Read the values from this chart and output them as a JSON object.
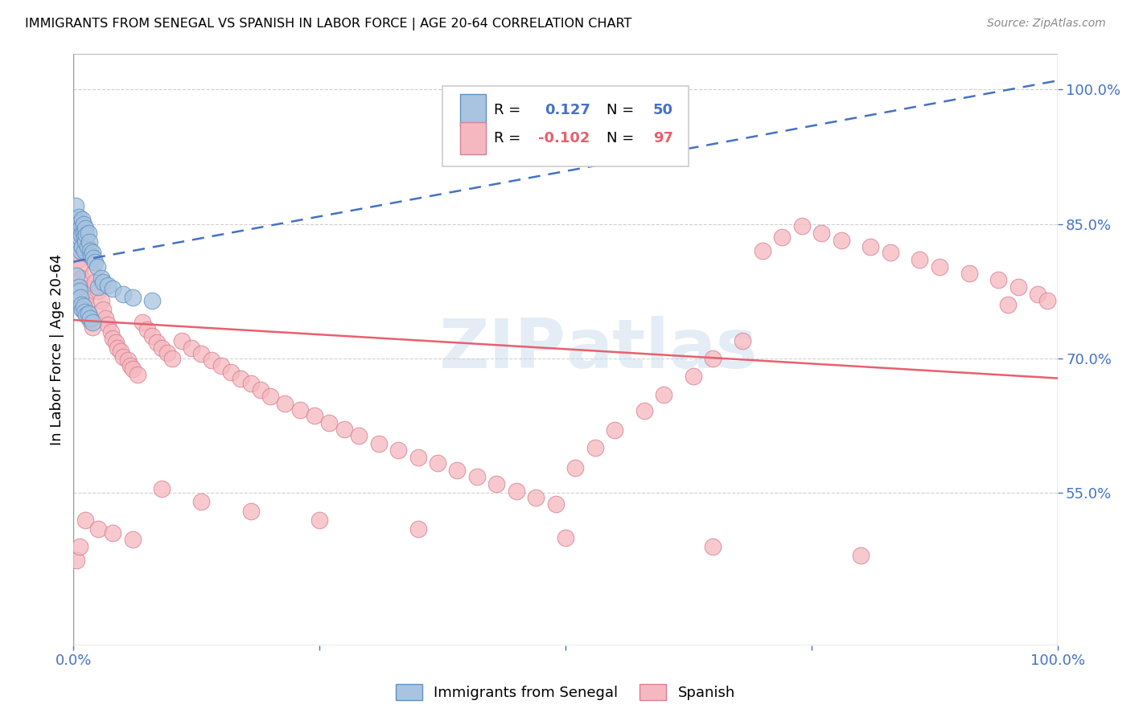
{
  "title": "IMMIGRANTS FROM SENEGAL VS SPANISH IN LABOR FORCE | AGE 20-64 CORRELATION CHART",
  "source": "Source: ZipAtlas.com",
  "ylabel": "In Labor Force | Age 20-64",
  "xlim": [
    0.0,
    1.0
  ],
  "ylim": [
    0.38,
    1.04
  ],
  "ytick_positions": [
    0.55,
    0.7,
    0.85,
    1.0
  ],
  "ytick_labels": [
    "55.0%",
    "70.0%",
    "85.0%",
    "100.0%"
  ],
  "blue_color": "#a8c4e0",
  "pink_color": "#f5b8c0",
  "trendline_blue_color": "#4472c4",
  "trendline_pink_color": "#e8606e",
  "watermark": "ZIPatlas",
  "senegal_x": [
    0.002,
    0.003,
    0.004,
    0.004,
    0.005,
    0.005,
    0.006,
    0.006,
    0.007,
    0.007,
    0.008,
    0.008,
    0.009,
    0.009,
    0.01,
    0.01,
    0.011,
    0.011,
    0.012,
    0.012,
    0.013,
    0.014,
    0.015,
    0.016,
    0.017,
    0.018,
    0.019,
    0.02,
    0.022,
    0.024,
    0.003,
    0.005,
    0.006,
    0.007,
    0.008,
    0.009,
    0.01,
    0.011,
    0.013,
    0.015,
    0.017,
    0.019,
    0.025,
    0.028,
    0.03,
    0.035,
    0.04,
    0.05,
    0.06,
    0.08
  ],
  "senegal_y": [
    0.87,
    0.855,
    0.84,
    0.83,
    0.858,
    0.828,
    0.852,
    0.835,
    0.845,
    0.82,
    0.848,
    0.838,
    0.855,
    0.825,
    0.85,
    0.84,
    0.835,
    0.82,
    0.845,
    0.83,
    0.838,
    0.825,
    0.84,
    0.83,
    0.82,
    0.815,
    0.818,
    0.812,
    0.808,
    0.802,
    0.792,
    0.78,
    0.775,
    0.768,
    0.76,
    0.755,
    0.758,
    0.752,
    0.748,
    0.75,
    0.745,
    0.74,
    0.78,
    0.79,
    0.785,
    0.782,
    0.778,
    0.772,
    0.768,
    0.765
  ],
  "spanish_x": [
    0.003,
    0.005,
    0.006,
    0.008,
    0.01,
    0.012,
    0.013,
    0.015,
    0.017,
    0.019,
    0.02,
    0.022,
    0.025,
    0.028,
    0.03,
    0.032,
    0.035,
    0.038,
    0.04,
    0.043,
    0.045,
    0.048,
    0.05,
    0.055,
    0.058,
    0.06,
    0.065,
    0.07,
    0.075,
    0.08,
    0.085,
    0.09,
    0.095,
    0.1,
    0.11,
    0.12,
    0.13,
    0.14,
    0.15,
    0.16,
    0.17,
    0.18,
    0.19,
    0.2,
    0.215,
    0.23,
    0.245,
    0.26,
    0.275,
    0.29,
    0.31,
    0.33,
    0.35,
    0.37,
    0.39,
    0.41,
    0.43,
    0.45,
    0.47,
    0.49,
    0.51,
    0.53,
    0.55,
    0.58,
    0.6,
    0.63,
    0.65,
    0.68,
    0.7,
    0.72,
    0.74,
    0.76,
    0.78,
    0.81,
    0.83,
    0.86,
    0.88,
    0.91,
    0.94,
    0.96,
    0.98,
    0.99,
    0.003,
    0.006,
    0.012,
    0.025,
    0.04,
    0.06,
    0.09,
    0.13,
    0.18,
    0.25,
    0.35,
    0.5,
    0.65,
    0.8,
    0.95
  ],
  "spanish_y": [
    0.82,
    0.81,
    0.8,
    0.79,
    0.778,
    0.768,
    0.76,
    0.75,
    0.742,
    0.735,
    0.795,
    0.785,
    0.775,
    0.765,
    0.755,
    0.745,
    0.738,
    0.73,
    0.722,
    0.718,
    0.712,
    0.708,
    0.702,
    0.698,
    0.692,
    0.688,
    0.682,
    0.74,
    0.732,
    0.725,
    0.718,
    0.712,
    0.706,
    0.7,
    0.72,
    0.712,
    0.705,
    0.698,
    0.692,
    0.685,
    0.678,
    0.672,
    0.665,
    0.658,
    0.65,
    0.643,
    0.636,
    0.628,
    0.621,
    0.614,
    0.605,
    0.598,
    0.59,
    0.583,
    0.575,
    0.568,
    0.56,
    0.552,
    0.545,
    0.538,
    0.578,
    0.6,
    0.62,
    0.642,
    0.66,
    0.68,
    0.7,
    0.72,
    0.82,
    0.835,
    0.848,
    0.84,
    0.832,
    0.825,
    0.818,
    0.81,
    0.802,
    0.795,
    0.788,
    0.78,
    0.772,
    0.765,
    0.475,
    0.49,
    0.52,
    0.51,
    0.505,
    0.498,
    0.555,
    0.54,
    0.53,
    0.52,
    0.51,
    0.5,
    0.49,
    0.48,
    0.76
  ],
  "blue_trendline_x": [
    0.0,
    1.0
  ],
  "blue_trendline_y": [
    0.808,
    1.01
  ],
  "pink_trendline_x": [
    0.0,
    1.0
  ],
  "pink_trendline_y": [
    0.743,
    0.678
  ]
}
